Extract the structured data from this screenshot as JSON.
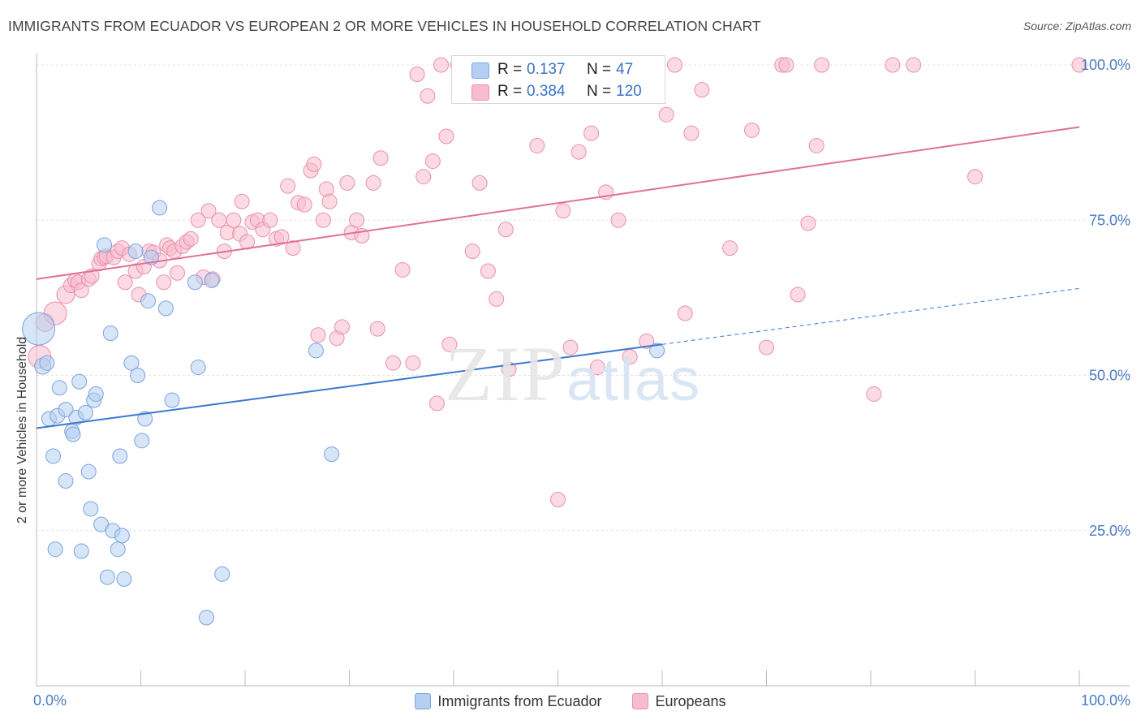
{
  "header": {
    "title": "IMMIGRANTS FROM ECUADOR VS EUROPEAN 2 OR MORE VEHICLES IN HOUSEHOLD CORRELATION CHART",
    "source": "Source: ZipAtlas.com"
  },
  "watermark": {
    "zip": "ZIP",
    "atlas": "atlas"
  },
  "stats": {
    "row1": {
      "r_label": "R =",
      "r_value": "0.137",
      "n_label": "N =",
      "n_value": "47"
    },
    "row2": {
      "r_label": "R =",
      "r_value": "0.384",
      "n_label": "N =",
      "n_value": "120"
    }
  },
  "legend": {
    "series1": "Immigrants from Ecuador",
    "series2": "Europeans"
  },
  "colors": {
    "blue_fill": "#b5cff2",
    "blue_stroke": "#7ca3dc",
    "blue_line": "#3a78d0",
    "pink_fill": "#f7bccd",
    "pink_stroke": "#e990ad",
    "pink_line": "#e0709a",
    "axis_text": "#4a7cc4",
    "grid": "#e4e4e4"
  },
  "chart_data": {
    "type": "scatter",
    "title": "IMMIGRANTS FROM ECUADOR VS EUROPEAN 2 OR MORE VEHICLES IN HOUSEHOLD CORRELATION CHART",
    "xlabel": "",
    "ylabel": "2 or more Vehicles in Household",
    "xlim": [
      0,
      100
    ],
    "ylim": [
      0,
      102
    ],
    "x_tick_labels": [
      "0.0%",
      "100.0%"
    ],
    "y_ticks": [
      25,
      50,
      75,
      100
    ],
    "y_tick_labels": [
      "25.0%",
      "50.0%",
      "75.0%",
      "100.0%"
    ],
    "grid": true,
    "series": [
      {
        "name": "Immigrants from Ecuador",
        "R": 0.137,
        "N": 47,
        "trend": {
          "x0": 0,
          "y0": 41.5,
          "x1": 60,
          "y1": 55.0,
          "dash_to_x": 100,
          "dash_to_y": 64.0
        },
        "points": [
          [
            0.2,
            57.5,
            20
          ],
          [
            0.6,
            51.5,
            10
          ],
          [
            1.0,
            52.0,
            9
          ],
          [
            1.2,
            43.0,
            9
          ],
          [
            1.6,
            37.0,
            9
          ],
          [
            1.8,
            22.0,
            9
          ],
          [
            2.0,
            43.5,
            9
          ],
          [
            2.2,
            48.0,
            9
          ],
          [
            2.8,
            33.0,
            9
          ],
          [
            2.8,
            44.5,
            9
          ],
          [
            3.4,
            41.0,
            9
          ],
          [
            3.5,
            40.5,
            9
          ],
          [
            3.8,
            43.2,
            9
          ],
          [
            4.1,
            49.0,
            9
          ],
          [
            4.3,
            21.7,
            9
          ],
          [
            4.7,
            44.0,
            9
          ],
          [
            5.0,
            34.5,
            9
          ],
          [
            5.2,
            28.5,
            9
          ],
          [
            5.5,
            46.0,
            9
          ],
          [
            5.7,
            47.0,
            9
          ],
          [
            6.2,
            26.0,
            9
          ],
          [
            6.5,
            71.0,
            9
          ],
          [
            6.8,
            17.5,
            9
          ],
          [
            7.1,
            56.8,
            9
          ],
          [
            7.3,
            25.0,
            9
          ],
          [
            7.8,
            22.0,
            9
          ],
          [
            8.0,
            37.0,
            9
          ],
          [
            8.2,
            24.2,
            9
          ],
          [
            8.4,
            17.2,
            9
          ],
          [
            9.1,
            52.0,
            9
          ],
          [
            9.5,
            70.0,
            9
          ],
          [
            9.7,
            50.0,
            9
          ],
          [
            10.1,
            39.5,
            9
          ],
          [
            10.4,
            43.0,
            9
          ],
          [
            10.7,
            62.0,
            9
          ],
          [
            11.0,
            69.0,
            9
          ],
          [
            11.8,
            77.0,
            9
          ],
          [
            12.4,
            60.8,
            9
          ],
          [
            13.0,
            46.0,
            9
          ],
          [
            15.2,
            65.0,
            9
          ],
          [
            15.5,
            51.3,
            9
          ],
          [
            16.3,
            11.0,
            9
          ],
          [
            16.8,
            65.3,
            9
          ],
          [
            17.8,
            18.0,
            9
          ],
          [
            26.8,
            54.0,
            9
          ],
          [
            28.3,
            37.3,
            9
          ],
          [
            59.5,
            54.0,
            9
          ]
        ]
      },
      {
        "name": "Europeans",
        "R": 0.384,
        "N": 120,
        "trend": {
          "x0": 0,
          "y0": 65.5,
          "x1": 100,
          "y1": 90.0
        },
        "points": [
          [
            0.3,
            53.0,
            14
          ],
          [
            0.8,
            58.5,
            11
          ],
          [
            1.8,
            60.0,
            14
          ],
          [
            2.8,
            63.0,
            11
          ],
          [
            3.3,
            64.5,
            9
          ],
          [
            3.7,
            65.3,
            9
          ],
          [
            4.0,
            65.0,
            9
          ],
          [
            4.3,
            63.7,
            9
          ],
          [
            5.0,
            65.5,
            9
          ],
          [
            5.3,
            66.0,
            9
          ],
          [
            6.0,
            68.0,
            9
          ],
          [
            6.2,
            68.8,
            9
          ],
          [
            6.5,
            69.0,
            9
          ],
          [
            6.7,
            69.2,
            9
          ],
          [
            7.4,
            69.0,
            9
          ],
          [
            7.8,
            70.0,
            9
          ],
          [
            8.2,
            70.5,
            9
          ],
          [
            8.5,
            65.0,
            9
          ],
          [
            8.9,
            69.5,
            9
          ],
          [
            9.5,
            66.8,
            9
          ],
          [
            9.8,
            63.0,
            9
          ],
          [
            10.3,
            67.5,
            9
          ],
          [
            10.8,
            70.0,
            9
          ],
          [
            11.2,
            69.8,
            9
          ],
          [
            11.8,
            68.5,
            9
          ],
          [
            12.2,
            65.0,
            9
          ],
          [
            12.5,
            71.0,
            9
          ],
          [
            12.8,
            70.5,
            9
          ],
          [
            13.2,
            70.0,
            9
          ],
          [
            13.5,
            66.5,
            9
          ],
          [
            14.0,
            70.8,
            9
          ],
          [
            14.4,
            71.5,
            9
          ],
          [
            14.8,
            72.0,
            9
          ],
          [
            15.5,
            75.0,
            9
          ],
          [
            16.0,
            65.8,
            9
          ],
          [
            16.5,
            76.5,
            9
          ],
          [
            16.9,
            65.5,
            9
          ],
          [
            17.5,
            75.0,
            9
          ],
          [
            18.0,
            70.0,
            9
          ],
          [
            18.3,
            73.0,
            9
          ],
          [
            18.9,
            75.0,
            9
          ],
          [
            19.5,
            72.8,
            9
          ],
          [
            19.7,
            78.0,
            9
          ],
          [
            20.2,
            71.5,
            9
          ],
          [
            20.7,
            74.7,
            9
          ],
          [
            21.2,
            75.0,
            9
          ],
          [
            21.7,
            73.5,
            9
          ],
          [
            22.4,
            75.0,
            9
          ],
          [
            23.0,
            72.0,
            9
          ],
          [
            23.5,
            72.3,
            9
          ],
          [
            24.1,
            80.5,
            9
          ],
          [
            24.6,
            70.5,
            9
          ],
          [
            25.1,
            77.8,
            9
          ],
          [
            25.7,
            77.5,
            9
          ],
          [
            26.3,
            83.0,
            9
          ],
          [
            26.6,
            84.0,
            9
          ],
          [
            27.0,
            56.5,
            9
          ],
          [
            27.5,
            75.0,
            9
          ],
          [
            27.8,
            80.0,
            9
          ],
          [
            28.1,
            78.0,
            9
          ],
          [
            28.8,
            56.0,
            9
          ],
          [
            29.3,
            57.8,
            9
          ],
          [
            29.8,
            81.0,
            9
          ],
          [
            30.2,
            73.0,
            9
          ],
          [
            30.7,
            75.0,
            9
          ],
          [
            31.2,
            72.5,
            9
          ],
          [
            32.3,
            81.0,
            9
          ],
          [
            32.7,
            57.5,
            9
          ],
          [
            33.0,
            85.0,
            9
          ],
          [
            34.2,
            52.0,
            9
          ],
          [
            35.1,
            67.0,
            9
          ],
          [
            36.1,
            52.0,
            9
          ],
          [
            36.5,
            98.5,
            9
          ],
          [
            37.1,
            82.0,
            9
          ],
          [
            37.5,
            95.0,
            9
          ],
          [
            38.0,
            84.5,
            9
          ],
          [
            38.4,
            45.5,
            9
          ],
          [
            38.8,
            100.0,
            9
          ],
          [
            39.3,
            88.5,
            9
          ],
          [
            39.6,
            55.0,
            9
          ],
          [
            40.4,
            100.0,
            9
          ],
          [
            41.2,
            99.5,
            9
          ],
          [
            41.8,
            70.0,
            9
          ],
          [
            42.5,
            81.0,
            9
          ],
          [
            43.3,
            66.8,
            9
          ],
          [
            44.1,
            62.3,
            9
          ],
          [
            45.0,
            73.5,
            9
          ],
          [
            45.3,
            51.0,
            9
          ],
          [
            46.1,
            97.0,
            9
          ],
          [
            47.0,
            99.0,
            9
          ],
          [
            48.0,
            87.0,
            9
          ],
          [
            49.0,
            95.0,
            9
          ],
          [
            50.0,
            30.0,
            9
          ],
          [
            50.5,
            76.5,
            9
          ],
          [
            51.2,
            54.5,
            9
          ],
          [
            52.0,
            86.0,
            9
          ],
          [
            53.2,
            89.0,
            9
          ],
          [
            53.8,
            51.3,
            9
          ],
          [
            54.6,
            79.5,
            9
          ],
          [
            55.8,
            75.0,
            9
          ],
          [
            56.9,
            53.0,
            9
          ],
          [
            58.0,
            100.0,
            9
          ],
          [
            58.5,
            55.5,
            9
          ],
          [
            60.4,
            92.0,
            9
          ],
          [
            61.2,
            100.0,
            9
          ],
          [
            62.2,
            60.0,
            9
          ],
          [
            62.8,
            89.0,
            9
          ],
          [
            63.8,
            96.0,
            9
          ],
          [
            66.5,
            70.5,
            9
          ],
          [
            68.6,
            89.5,
            9
          ],
          [
            70.0,
            54.5,
            9
          ],
          [
            71.5,
            100.0,
            9
          ],
          [
            71.9,
            100.0,
            9
          ],
          [
            73.0,
            63.0,
            9
          ],
          [
            74.0,
            74.5,
            9
          ],
          [
            74.8,
            87.0,
            9
          ],
          [
            75.3,
            100.0,
            9
          ],
          [
            80.3,
            47.0,
            9
          ],
          [
            82.1,
            100.0,
            9
          ],
          [
            84.1,
            100.0,
            9
          ],
          [
            90.0,
            82.0,
            9
          ],
          [
            100.0,
            100.0,
            9
          ]
        ]
      }
    ]
  }
}
